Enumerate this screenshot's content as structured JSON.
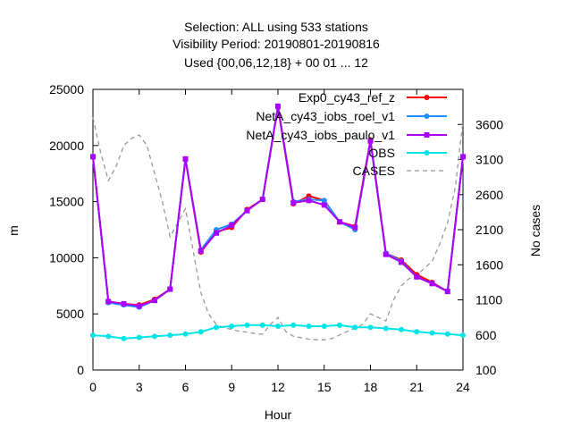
{
  "title_lines": [
    "Selection: ALL using   533 stations",
    "Visibility   Period: 20190801-20190816",
    "Used {00,06,12,18} + 00 01 ... 12"
  ],
  "chart_data": {
    "type": "line",
    "title": "Selection: ALL using   533 stations / Visibility   Period: 20190801-20190816 / Used {00,06,12,18} + 00 01 ... 12",
    "xlabel": "Hour",
    "ylabel": "m",
    "y2label": "No cases",
    "xlim": [
      0,
      24
    ],
    "ylim": [
      0,
      25000
    ],
    "y2lim": [
      100,
      4100
    ],
    "xticks": [
      0,
      3,
      6,
      9,
      12,
      15,
      18,
      21,
      24
    ],
    "yticks": [
      0,
      5000,
      10000,
      15000,
      20000,
      25000
    ],
    "y2ticks": [
      100,
      600,
      1100,
      1600,
      2100,
      2600,
      3100,
      3600
    ],
    "grid": false,
    "legend_position": "top-right",
    "x": [
      0,
      1,
      2,
      3,
      4,
      5,
      6,
      7,
      8,
      9,
      10,
      11,
      12,
      13,
      14,
      15,
      16,
      17,
      18,
      19,
      20,
      21,
      22,
      23,
      24
    ],
    "series": [
      {
        "name": "Exp0_cy43_ref_z",
        "color": "#ff0000",
        "marker": "filled-circle",
        "axis": "y",
        "values": [
          19000,
          6100,
          5900,
          5800,
          6300,
          7200,
          18800,
          10500,
          12300,
          12700,
          14300,
          15200,
          23400,
          14800,
          15500,
          15100,
          13200,
          12800,
          20500,
          10400,
          9800,
          8500,
          7800,
          7000,
          19000
        ]
      },
      {
        "name": "NetA_cy43_iobs_roel_v1",
        "color": "#1e90ff",
        "marker": "filled-circle",
        "axis": "y",
        "values": [
          19000,
          6000,
          5800,
          5600,
          6200,
          7200,
          18800,
          10700,
          12500,
          13000,
          14200,
          15200,
          23500,
          15000,
          15200,
          15100,
          13200,
          12500,
          20400,
          10400,
          9700,
          8300,
          7700,
          7000,
          19000
        ]
      },
      {
        "name": "NetA_cy43_iobs_paulo_v1",
        "color": "#aa00ff",
        "marker": "filled-square",
        "axis": "y",
        "values": [
          19000,
          6100,
          5900,
          5700,
          6200,
          7200,
          18800,
          10600,
          12200,
          12900,
          14200,
          15200,
          23500,
          14900,
          15100,
          14700,
          13200,
          12700,
          20400,
          10300,
          9600,
          8300,
          7700,
          7000,
          19000
        ]
      },
      {
        "name": "OBS",
        "color": "#00e5e5",
        "marker": "filled-circle",
        "axis": "y",
        "values": [
          3100,
          3000,
          2800,
          2900,
          3000,
          3100,
          3200,
          3400,
          3800,
          3900,
          4000,
          4000,
          3900,
          4000,
          3900,
          3900,
          4000,
          3800,
          3800,
          3700,
          3600,
          3400,
          3300,
          3200,
          3100
        ]
      },
      {
        "name": "CASES",
        "color": "#999999",
        "marker": "none",
        "dashed": true,
        "axis": "y2",
        "x": [
          0,
          0.5,
          1,
          1.5,
          2,
          2.5,
          3,
          3.5,
          4,
          4.5,
          5,
          5.5,
          6,
          6.5,
          7,
          7.5,
          8,
          8.5,
          9,
          9.5,
          10,
          10.5,
          11,
          11.5,
          12,
          12.5,
          13,
          13.5,
          14,
          14.5,
          15,
          15.5,
          16,
          16.5,
          17,
          17.5,
          18,
          18.5,
          19,
          19.5,
          20,
          20.5,
          21,
          21.5,
          22,
          22.5,
          23,
          23.5,
          24
        ],
        "values": [
          3700,
          3200,
          2800,
          3000,
          3300,
          3400,
          3450,
          3300,
          2900,
          2500,
          2000,
          2200,
          2400,
          1800,
          1200,
          900,
          750,
          700,
          680,
          650,
          640,
          620,
          610,
          750,
          850,
          650,
          580,
          560,
          540,
          530,
          530,
          550,
          600,
          650,
          700,
          750,
          900,
          850,
          800,
          1100,
          1300,
          1400,
          1450,
          1550,
          1650,
          1900,
          2200,
          2700,
          3650
        ]
      }
    ]
  }
}
